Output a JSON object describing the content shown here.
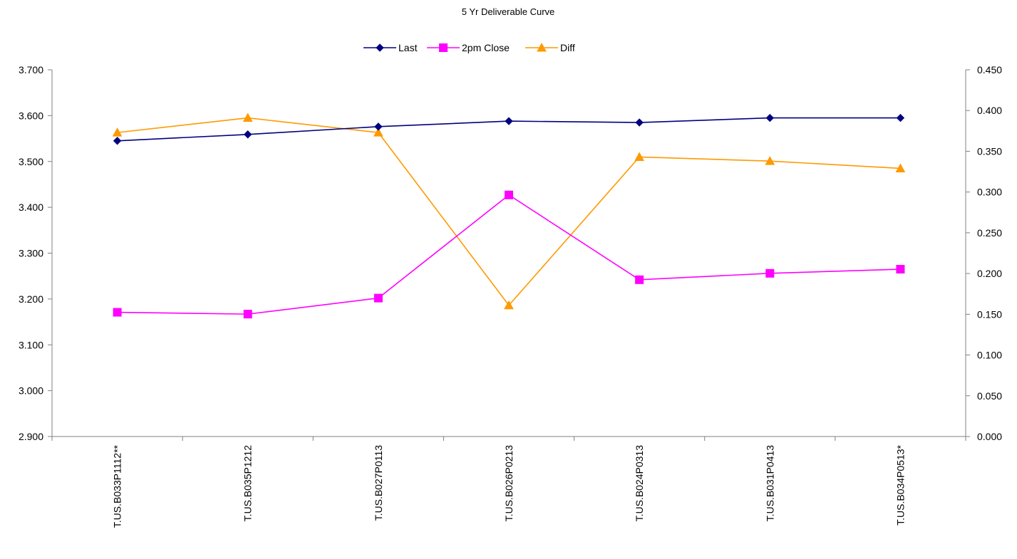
{
  "chart_data": {
    "type": "line",
    "title": "5 Yr Deliverable Curve",
    "categories": [
      "T.US.B033P1112**",
      "T.US.B035P1212",
      "T.US.B027P0113",
      "T.US.B026P0213",
      "T.US.B024P0313",
      "T.US.B031P0413",
      "T.US.B034P0513*"
    ],
    "y_left": {
      "min": 2.9,
      "max": 3.7,
      "step": 0.1,
      "ticks": [
        "2.900",
        "3.000",
        "3.100",
        "3.200",
        "3.300",
        "3.400",
        "3.500",
        "3.600",
        "3.700"
      ]
    },
    "y_right": {
      "min": 0.0,
      "max": 0.45,
      "step": 0.05,
      "ticks": [
        "0.000",
        "0.050",
        "0.100",
        "0.150",
        "0.200",
        "0.250",
        "0.300",
        "0.350",
        "0.400",
        "0.450"
      ]
    },
    "legend_position": "top-center",
    "grid": false,
    "series": [
      {
        "name": "Last",
        "axis": "left",
        "color": "#000080",
        "marker": "diamond",
        "values": [
          3.545,
          3.559,
          3.576,
          3.588,
          3.585,
          3.595,
          3.595
        ]
      },
      {
        "name": "2pm Close",
        "axis": "left",
        "color": "#ff00ff",
        "marker": "square",
        "values": [
          3.171,
          3.167,
          3.202,
          3.427,
          3.242,
          3.256,
          3.265
        ]
      },
      {
        "name": "Diff",
        "axis": "right",
        "color": "#ff9900",
        "marker": "triangle",
        "values": [
          0.373,
          0.391,
          0.373,
          0.161,
          0.343,
          0.338,
          0.329
        ]
      }
    ]
  }
}
